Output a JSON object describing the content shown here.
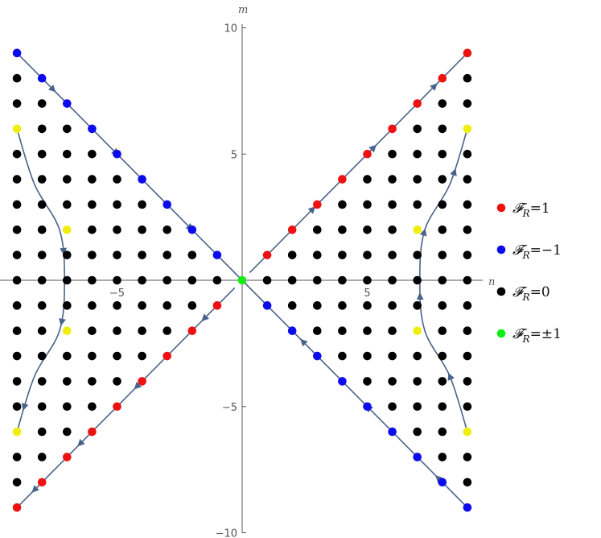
{
  "chart_data": {
    "type": "scatter",
    "xlabel": "n",
    "ylabel": "m",
    "xlim": [
      -9.5,
      9.5
    ],
    "ylim": [
      -10,
      10
    ],
    "x_ticks": [
      {
        "value": -5,
        "label": "−5"
      },
      {
        "value": 5,
        "label": "5"
      }
    ],
    "y_ticks": [
      {
        "value": 10,
        "label": "10"
      },
      {
        "value": 5,
        "label": "5"
      },
      {
        "value": -5,
        "label": "−5"
      },
      {
        "value": -10,
        "label": "−10"
      }
    ],
    "grid": false,
    "legend_position": "right",
    "colors": {
      "red": "#ee1111",
      "blue": "#0b0bee",
      "black": "#000000",
      "green": "#11ee11",
      "yellow": "#eeee11",
      "arrow": "#4a6289",
      "axis": "#555555"
    },
    "series": [
      {
        "name": "𝓕R=1",
        "color": "red",
        "points": [
          [
            1,
            1
          ],
          [
            2,
            2
          ],
          [
            3,
            3
          ],
          [
            4,
            4
          ],
          [
            5,
            5
          ],
          [
            6,
            6
          ],
          [
            7,
            7
          ],
          [
            8,
            8
          ],
          [
            9,
            9
          ],
          [
            -1,
            -1
          ],
          [
            -2,
            -2
          ],
          [
            -3,
            -3
          ],
          [
            -4,
            -4
          ],
          [
            -5,
            -5
          ],
          [
            -6,
            -6
          ],
          [
            -7,
            -7
          ],
          [
            -8,
            -8
          ],
          [
            -9,
            -9
          ]
        ]
      },
      {
        "name": "𝓕R=−1",
        "color": "blue",
        "points": [
          [
            -1,
            1
          ],
          [
            -2,
            2
          ],
          [
            -3,
            3
          ],
          [
            -4,
            4
          ],
          [
            -5,
            5
          ],
          [
            -6,
            6
          ],
          [
            -7,
            7
          ],
          [
            -8,
            8
          ],
          [
            -9,
            9
          ],
          [
            1,
            -1
          ],
          [
            2,
            -2
          ],
          [
            3,
            -3
          ],
          [
            4,
            -4
          ],
          [
            5,
            -5
          ],
          [
            6,
            -6
          ],
          [
            7,
            -7
          ],
          [
            8,
            -8
          ],
          [
            9,
            -9
          ]
        ]
      },
      {
        "name": "𝓕R=0",
        "color": "black",
        "rule": "all integer points with |m| < |n| and |n| ≤ 9, except the yellow ones"
      },
      {
        "name": "𝓕R=±1",
        "color": "green",
        "points": [
          [
            0,
            0
          ]
        ]
      },
      {
        "color": "yellow",
        "points": [
          [
            -9,
            6
          ],
          [
            -7,
            2
          ],
          [
            -7,
            -2
          ],
          [
            -9,
            -6
          ],
          [
            9,
            6
          ],
          [
            7,
            2
          ],
          [
            7,
            -2
          ],
          [
            9,
            -6
          ]
        ]
      }
    ],
    "flow_lines": [
      {
        "points": [
          [
            -9,
            9
          ],
          [
            0,
            0
          ]
        ],
        "arrows_at": [
          0.17,
          0.45,
          0.78
        ]
      },
      {
        "points": [
          [
            0.3,
            0.3
          ],
          [
            9,
            9
          ]
        ],
        "arrows_at": [
          0.3,
          0.58,
          0.86
        ]
      },
      {
        "points": [
          [
            9,
            -9
          ],
          [
            0,
            0
          ]
        ],
        "arrows_at": [
          0.14,
          0.45,
          0.74
        ]
      },
      {
        "points": [
          [
            -0.3,
            -0.3
          ],
          [
            -9,
            -9
          ]
        ],
        "arrows_at": [
          0.15,
          0.46,
          0.72,
          0.93
        ]
      },
      {
        "curve": [
          [
            -9,
            6
          ],
          [
            -8.3,
            3.8
          ],
          [
            -7.3,
            2
          ],
          [
            -7.1,
            0
          ],
          [
            -7.3,
            -2
          ],
          [
            -8.3,
            -3.8
          ],
          [
            -9,
            -6
          ]
        ],
        "arrows_at": [
          0.42,
          0.64,
          0.93
        ]
      },
      {
        "curve": [
          [
            9,
            -6
          ],
          [
            8.3,
            -3.8
          ],
          [
            7.3,
            -2
          ],
          [
            7.1,
            0
          ],
          [
            7.3,
            2
          ],
          [
            8.3,
            3.8
          ],
          [
            9,
            6
          ]
        ],
        "arrows_at": [
          0.19,
          0.46,
          0.66,
          0.87
        ]
      }
    ],
    "legend": [
      {
        "label": "𝓕R=1",
        "base": "𝓕",
        "sub": "R",
        "value": "=1",
        "color": "red"
      },
      {
        "label": "𝓕R=−1",
        "base": "𝓕",
        "sub": "R",
        "value": "=−1",
        "color": "blue"
      },
      {
        "label": "𝓕R=0",
        "base": "𝓕",
        "sub": "R",
        "value": "=0",
        "color": "black"
      },
      {
        "label": "𝓕R=±1",
        "base": "𝓕",
        "sub": "R",
        "value": "=±1",
        "color": "green"
      }
    ]
  }
}
